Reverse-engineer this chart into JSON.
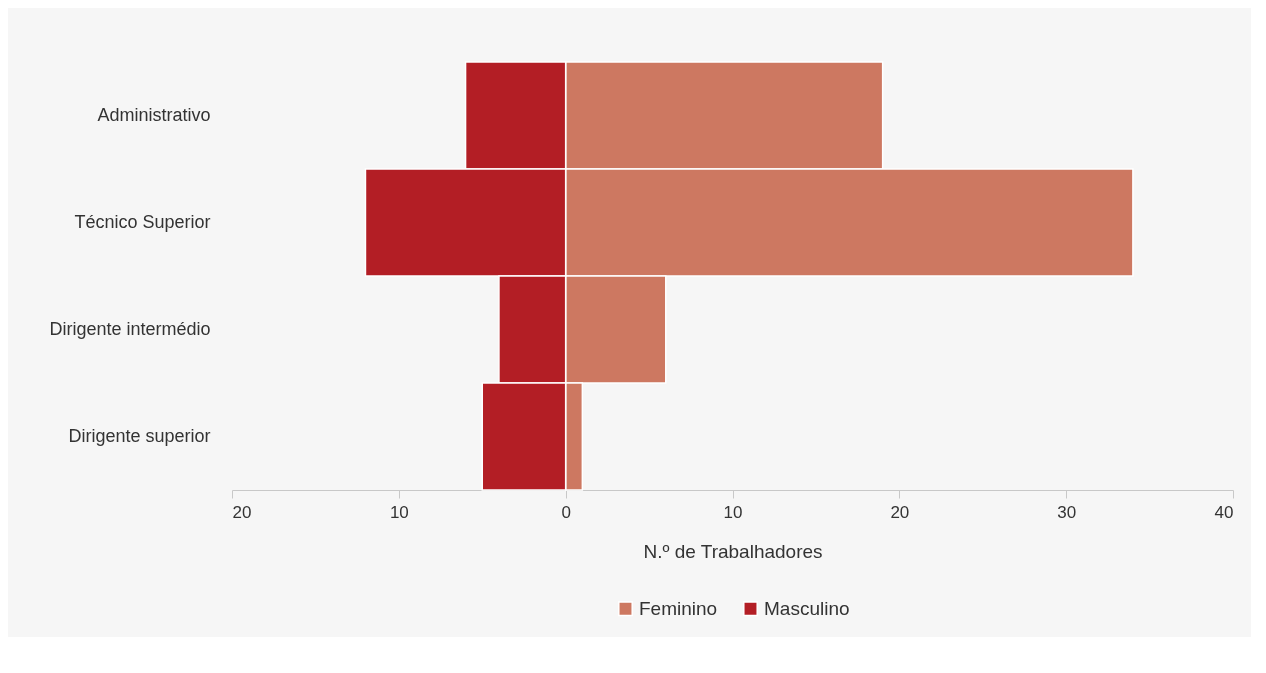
{
  "chart_data": {
    "type": "bar",
    "orientation": "horizontal",
    "stacked": true,
    "categories": [
      "Administrativo",
      "Técnico Superior",
      "Dirigente intermédio",
      "Dirigente superior"
    ],
    "series": [
      {
        "name": "Feminino",
        "color": "#cd7861",
        "values": [
          19,
          34,
          6,
          1
        ]
      },
      {
        "name": "Masculino",
        "color": "#b31e25",
        "values": [
          -6,
          -12,
          -4,
          -5
        ]
      }
    ],
    "xlim": [
      -20,
      40
    ],
    "xticks": [
      {
        "value": -20,
        "label": "20"
      },
      {
        "value": -10,
        "label": "10"
      },
      0,
      10,
      20,
      30,
      40
    ],
    "xlabel": "N.º de Trabalhadores",
    "grid": false,
    "legend": "bottom"
  }
}
